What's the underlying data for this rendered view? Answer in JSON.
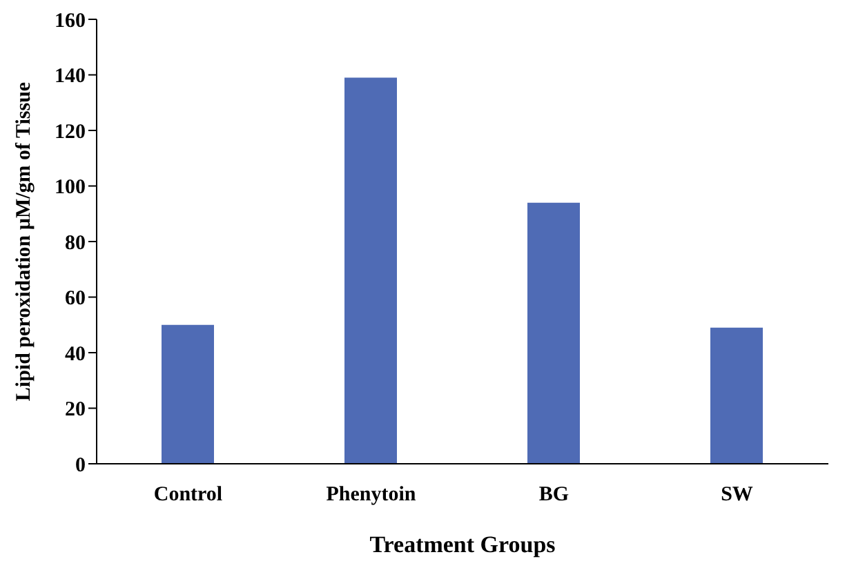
{
  "chart_data": {
    "type": "bar",
    "xlabel": "Treatment Groups",
    "ylabel": "Lipid peroxidation µM/gm of Tissue",
    "categories": [
      "Control",
      "Phenytoin",
      "BG",
      "SW"
    ],
    "values": [
      50,
      139,
      94,
      49
    ],
    "color": "#4f6bb5",
    "ylim": [
      0,
      160
    ],
    "yticks": [
      0,
      20,
      40,
      60,
      80,
      100,
      120,
      140,
      160
    ],
    "grid": false,
    "legend": false
  }
}
